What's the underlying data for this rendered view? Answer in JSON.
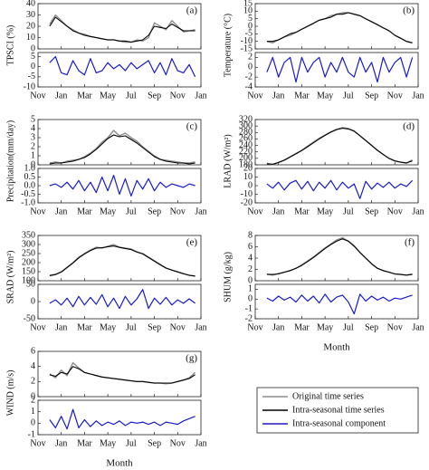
{
  "chart_data": {
    "type": "line",
    "xlabel": "Month",
    "categories": [
      "Nov",
      null,
      null,
      null,
      "Jan",
      null,
      null,
      null,
      "Mar",
      null,
      null,
      null,
      "May",
      null,
      null,
      null,
      "Jul",
      null,
      null,
      null,
      "Sep",
      null,
      null,
      null,
      "Nov",
      null,
      null,
      null,
      "Jan"
    ],
    "legend": [
      {
        "name": "Original time series",
        "color": "#8c8c8c"
      },
      {
        "name": "Intra-seasonal time series",
        "color": "#000000"
      },
      {
        "name": "Intra-seasonal component",
        "color": "#1a1acc"
      }
    ],
    "panels": [
      {
        "label": "(a)",
        "ylabel": "TPSCI (%)",
        "upper": {
          "ylim": [
            0,
            40
          ],
          "yticks": [
            0,
            10,
            20,
            30,
            40
          ],
          "original": [
            null,
            null,
            22,
            30,
            25,
            20,
            17,
            14,
            13,
            11,
            10,
            9,
            8,
            8,
            7,
            6,
            6,
            8,
            7,
            10,
            23,
            20,
            17,
            25,
            20,
            15,
            16,
            17,
            null
          ],
          "intra": [
            null,
            null,
            20,
            28,
            24,
            20,
            16,
            14,
            12,
            11,
            10,
            9,
            8,
            8,
            7,
            7,
            6,
            7,
            8,
            12,
            20,
            19,
            18,
            22,
            19,
            16,
            16,
            16,
            null
          ]
        },
        "lower": {
          "ylim": [
            -10,
            7
          ],
          "yticks": [
            -10,
            -5,
            0,
            5
          ],
          "component": [
            null,
            null,
            2,
            5,
            -3,
            -4,
            3,
            -2,
            -4,
            4,
            -3,
            -2,
            2,
            -1,
            1,
            -2,
            2,
            -1,
            1,
            3,
            -3,
            2,
            -4,
            4,
            -2,
            -3,
            1,
            -5,
            null
          ]
        }
      },
      {
        "label": "(b)",
        "ylabel": "Temperature (°C)",
        "upper": {
          "ylim": [
            -15,
            15
          ],
          "yticks": [
            -15,
            -10,
            -5,
            0,
            5,
            10,
            15
          ],
          "original": [
            null,
            null,
            -10,
            -11,
            -9,
            -7,
            -6,
            -4,
            -2,
            0,
            2,
            4,
            5,
            7,
            8,
            9,
            9,
            8,
            7,
            5,
            3,
            1,
            -1,
            -3,
            -6,
            -8,
            -10,
            -11,
            null
          ],
          "intra": [
            null,
            null,
            -10,
            -10,
            -9,
            -7,
            -5,
            -4,
            -2,
            0,
            2,
            4,
            5,
            6,
            8,
            8,
            9,
            8,
            7,
            5,
            3,
            1,
            -1,
            -3,
            -6,
            -8,
            -10,
            -11,
            null
          ]
        },
        "lower": {
          "ylim": [
            -4,
            3
          ],
          "yticks": [
            -4,
            -2,
            0,
            2
          ],
          "component": [
            null,
            null,
            -1,
            2,
            -2,
            1,
            2,
            -3,
            2,
            -1,
            1,
            2,
            -2,
            1,
            -1,
            2,
            -1,
            -2,
            2,
            -1,
            1,
            -3,
            2,
            -1,
            1,
            2,
            -2,
            2,
            null
          ]
        }
      },
      {
        "label": "(c)",
        "ylabel": "Precipitation(mm/day)",
        "upper": {
          "ylim": [
            0,
            5
          ],
          "yticks": [
            0,
            1,
            2,
            3,
            4,
            5
          ],
          "original": [
            null,
            null,
            0.2,
            0.3,
            0.2,
            0.4,
            0.5,
            0.6,
            0.9,
            1.3,
            1.8,
            2.5,
            3.0,
            3.8,
            3.2,
            3.5,
            3.0,
            2.6,
            2.0,
            1.5,
            1.0,
            0.6,
            0.5,
            0.4,
            0.3,
            0.2,
            0.2,
            0.3,
            null
          ],
          "intra": [
            null,
            null,
            0.1,
            0.2,
            0.2,
            0.3,
            0.4,
            0.6,
            0.8,
            1.2,
            1.7,
            2.3,
            2.9,
            3.3,
            3.1,
            3.2,
            2.8,
            2.4,
            1.9,
            1.4,
            0.9,
            0.6,
            0.4,
            0.3,
            0.2,
            0.2,
            0.1,
            0.2,
            null
          ]
        },
        "lower": {
          "ylim": [
            -1,
            1
          ],
          "yticks": [
            {
              "value": -1,
              "label": "-1.0"
            },
            -0.5,
            {
              "value": 0,
              "label": "0.0"
            },
            0.5,
            {
              "value": 1,
              "label": "1.0"
            }
          ],
          "component": [
            null,
            null,
            0.0,
            0.1,
            -0.1,
            0.2,
            -0.2,
            0.3,
            -0.3,
            0.2,
            -0.4,
            0.5,
            -0.3,
            0.6,
            -0.5,
            0.4,
            -0.6,
            0.3,
            -0.2,
            0.4,
            -0.3,
            0.2,
            -0.1,
            0.1,
            0.0,
            -0.1,
            0.1,
            0.0,
            null
          ]
        }
      },
      {
        "label": "(d)",
        "ylabel": "LRAD (W/m²)",
        "upper": {
          "ylim": [
            180,
            320
          ],
          "yticks": [
            180,
            200,
            220,
            240,
            260,
            280,
            300,
            320
          ],
          "original": [
            null,
            null,
            185,
            180,
            188,
            195,
            205,
            215,
            225,
            238,
            250,
            262,
            272,
            282,
            290,
            295,
            292,
            285,
            270,
            255,
            240,
            225,
            212,
            200,
            192,
            188,
            185,
            195,
            null
          ],
          "intra": [
            null,
            null,
            183,
            182,
            187,
            194,
            204,
            214,
            224,
            236,
            248,
            260,
            271,
            281,
            289,
            293,
            291,
            284,
            270,
            255,
            240,
            225,
            212,
            200,
            192,
            188,
            186,
            192,
            null
          ]
        },
        "lower": {
          "ylim": [
            -20,
            20
          ],
          "yticks": [
            -20,
            -10,
            0,
            10,
            20
          ],
          "component": [
            null,
            null,
            2,
            -3,
            4,
            -5,
            3,
            6,
            -4,
            5,
            -6,
            4,
            -3,
            6,
            -5,
            4,
            -3,
            2,
            -15,
            5,
            -4,
            3,
            -2,
            4,
            -3,
            2,
            -1,
            6,
            null
          ]
        }
      },
      {
        "label": "(e)",
        "ylabel": "SRAD (W/m²)",
        "upper": {
          "ylim": [
            100,
            350
          ],
          "yticks": [
            100,
            150,
            200,
            250,
            300,
            350
          ],
          "original": [
            null,
            null,
            130,
            135,
            150,
            175,
            200,
            230,
            250,
            270,
            285,
            280,
            290,
            300,
            285,
            280,
            275,
            260,
            250,
            230,
            210,
            190,
            170,
            160,
            150,
            140,
            130,
            125,
            null
          ],
          "intra": [
            null,
            null,
            128,
            134,
            148,
            172,
            198,
            226,
            248,
            266,
            280,
            282,
            288,
            292,
            284,
            278,
            272,
            258,
            248,
            228,
            208,
            188,
            170,
            158,
            148,
            138,
            130,
            126,
            null
          ]
        },
        "lower": {
          "ylim": [
            -50,
            50
          ],
          "yticks": [
            -50,
            0,
            50
          ],
          "component": [
            null,
            null,
            -5,
            5,
            -10,
            10,
            -15,
            15,
            -10,
            12,
            -8,
            20,
            -15,
            10,
            -20,
            15,
            -10,
            8,
            35,
            -20,
            10,
            -8,
            12,
            -10,
            5,
            -5,
            8,
            -5,
            null
          ]
        }
      },
      {
        "label": "(f)",
        "ylabel": "SHUM (g/kg)",
        "upper": {
          "ylim": [
            0,
            8
          ],
          "yticks": [
            0,
            2,
            4,
            6,
            8
          ],
          "original": [
            null,
            null,
            1.2,
            1.0,
            1.3,
            1.5,
            1.8,
            2.2,
            2.8,
            3.5,
            4.2,
            5.0,
            5.8,
            6.5,
            7.2,
            7.6,
            7.0,
            6.2,
            5.0,
            4.0,
            3.0,
            2.2,
            1.8,
            1.5,
            1.2,
            1.1,
            1.0,
            1.2,
            null
          ],
          "intra": [
            null,
            null,
            1.1,
            1.1,
            1.2,
            1.5,
            1.8,
            2.2,
            2.7,
            3.4,
            4.1,
            4.9,
            5.7,
            6.4,
            7.0,
            7.4,
            7.0,
            6.1,
            5.0,
            4.0,
            3.0,
            2.2,
            1.8,
            1.5,
            1.2,
            1.1,
            1.0,
            1.1,
            null
          ]
        },
        "lower": {
          "ylim": [
            -2,
            1.5
          ],
          "yticks": [
            -2,
            -1,
            0,
            1
          ],
          "component": [
            null,
            null,
            0.1,
            -0.2,
            0.3,
            -0.1,
            0.2,
            -0.3,
            0.4,
            -0.2,
            0.3,
            -0.4,
            0.5,
            -0.3,
            0.2,
            0.4,
            -0.3,
            -1.5,
            0.5,
            -0.2,
            0.3,
            -0.1,
            0.2,
            -0.2,
            0.1,
            0.0,
            0.2,
            0.4,
            null
          ]
        }
      },
      {
        "label": "(g)",
        "ylabel": "WIND (m/s)",
        "upper": {
          "ylim": [
            0,
            6
          ],
          "yticks": [
            0,
            2,
            4,
            6
          ],
          "original": [
            null,
            null,
            3.0,
            2.5,
            3.5,
            2.8,
            4.5,
            3.8,
            3.2,
            3.0,
            2.8,
            2.6,
            2.5,
            2.4,
            2.3,
            2.2,
            2.1,
            2.0,
            2.0,
            1.9,
            1.8,
            1.8,
            1.7,
            1.8,
            2.0,
            2.2,
            2.5,
            3.2,
            null
          ],
          "intra": [
            null,
            null,
            2.9,
            2.7,
            3.2,
            3.0,
            4.0,
            3.7,
            3.2,
            3.0,
            2.8,
            2.6,
            2.5,
            2.4,
            2.3,
            2.2,
            2.1,
            2.0,
            2.0,
            1.9,
            1.8,
            1.8,
            1.8,
            1.8,
            2.0,
            2.2,
            2.4,
            2.9,
            null
          ]
        },
        "lower": {
          "ylim": [
            -1,
            2
          ],
          "yticks": [
            -1,
            0,
            1,
            2
          ],
          "component": [
            null,
            null,
            0.3,
            -0.4,
            0.6,
            -0.5,
            1.2,
            -0.4,
            0.3,
            -0.3,
            0.2,
            -0.2,
            0.1,
            -0.1,
            0.2,
            -0.2,
            0.1,
            0.0,
            0.1,
            -0.1,
            0.1,
            -0.2,
            0.1,
            0.0,
            -0.1,
            0.2,
            0.4,
            0.6,
            null
          ]
        }
      }
    ]
  }
}
